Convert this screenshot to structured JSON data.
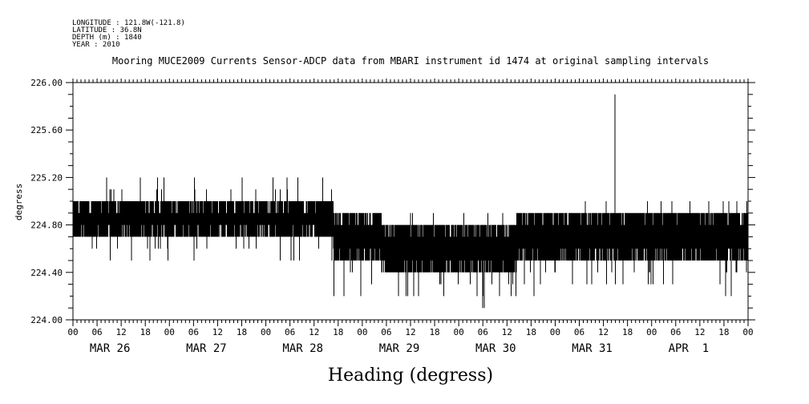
{
  "metadata": [
    "LONGITUDE : 121.8W(-121.8)",
    "LATITUDE : 36.8N",
    "DEPTH (m) : 1840",
    "YEAR : 2010"
  ],
  "chart_data": {
    "type": "line",
    "title": "Mooring MUCE2009 Currents Sensor-ADCP data from MBARI instrument id 1474 at original sampling intervals",
    "ylabel": "degress",
    "xlabel": "Heading (degress)",
    "ylim": [
      224.0,
      226.0
    ],
    "yticks": [
      "224.00",
      "224.40",
      "224.80",
      "225.20",
      "225.60",
      "226.00"
    ],
    "x_range_days": [
      0,
      7
    ],
    "hour_tick_labels": [
      "00",
      "06",
      "12",
      "18",
      "00",
      "06",
      "12",
      "18",
      "00",
      "06",
      "12",
      "18",
      "00",
      "06",
      "12",
      "18",
      "00",
      "06",
      "12",
      "18",
      "00",
      "06",
      "12",
      "18",
      "00",
      "06",
      "12",
      "18",
      "00"
    ],
    "day_labels": [
      "MAR 26",
      "MAR 27",
      "MAR 28",
      "MAR 29",
      "MAR 30",
      "MAR 31",
      "APR  1"
    ],
    "grid": false,
    "series": [
      {
        "values_note_days": "x in days since MAR 26 00:00",
        "segments": [
          {
            "x0": 0.0,
            "x1": 2.7,
            "low": 224.7,
            "high": 225.0,
            "spike_low": 224.5,
            "spike_high": 225.2
          },
          {
            "x0": 2.7,
            "x1": 3.2,
            "low": 224.5,
            "high": 224.9,
            "spike_low": 224.1,
            "spike_high": 224.9
          },
          {
            "x0": 3.2,
            "x1": 4.6,
            "low": 224.4,
            "high": 224.8,
            "spike_low": 224.1,
            "spike_high": 224.9
          },
          {
            "x0": 4.6,
            "x1": 5.3,
            "low": 224.5,
            "high": 224.9,
            "spike_low": 224.2,
            "spike_high": 224.9
          },
          {
            "x0": 5.3,
            "x1": 7.0,
            "low": 224.5,
            "high": 224.9,
            "spike_low": 224.2,
            "spike_high": 225.0
          }
        ],
        "spikes": [
          {
            "x": 5.62,
            "y": 225.9
          }
        ]
      }
    ]
  }
}
